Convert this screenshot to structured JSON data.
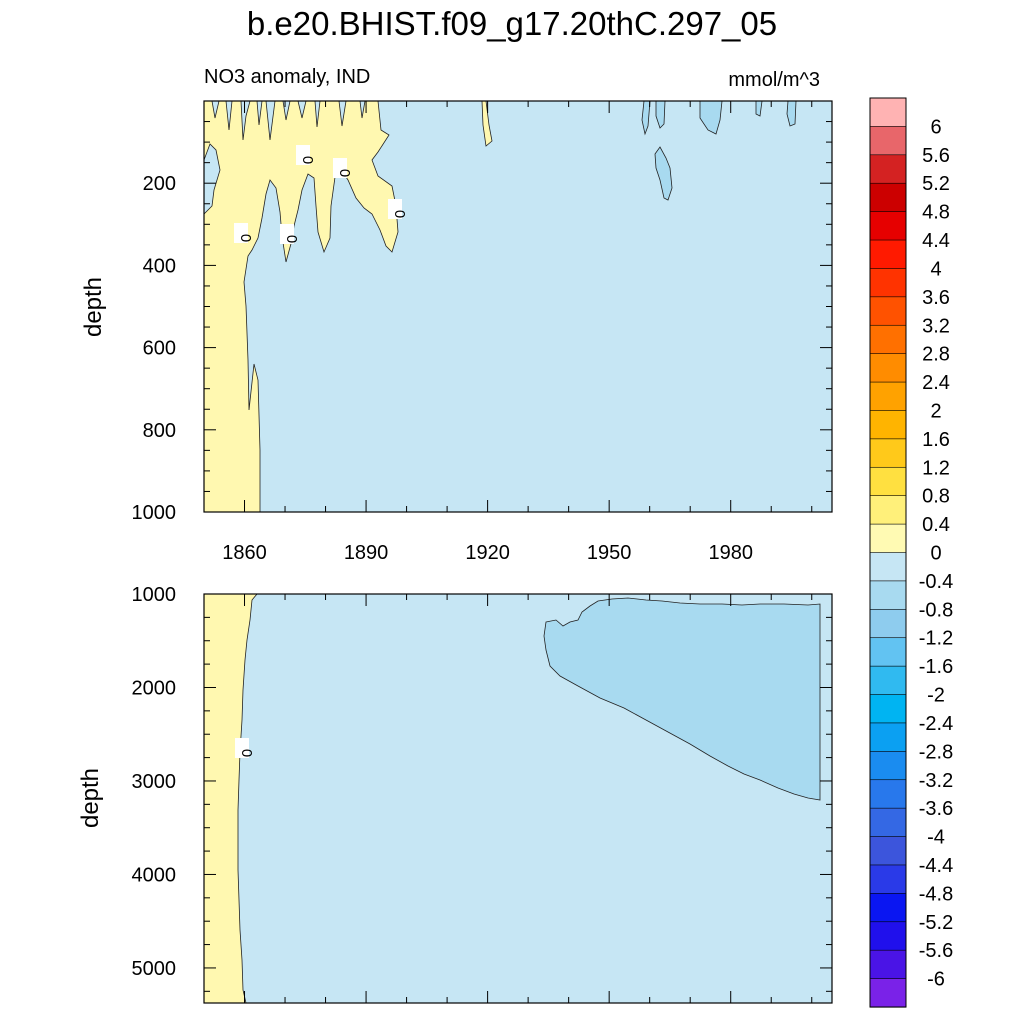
{
  "title": "b.e20.BHIST.f09_g17.20thC.297_05",
  "subtitle_left": "NO3 anomaly, IND",
  "units": "mmol/m^3",
  "ylabel": "depth",
  "contour_label": "0",
  "chart_data": [
    {
      "type": "heatmap",
      "panel": "upper",
      "variable": "NO3 anomaly",
      "region": "IND",
      "units": "mmol/m^3",
      "xlabel": "",
      "ylabel": "depth",
      "xlim": [
        1850,
        2005
      ],
      "ylim": [
        1000,
        0
      ],
      "xticks": [
        1860,
        1890,
        1920,
        1950,
        1980
      ],
      "yticks": [
        200,
        400,
        600,
        800,
        1000
      ],
      "contour_labels": [
        "0",
        "0",
        "0",
        "0",
        "0"
      ],
      "regions": [
        {
          "level": "0 to 0.4",
          "description": "positive anomaly near surface 1850-1900 and full-depth strip 1850-1865"
        },
        {
          "level": "-0.4 to 0",
          "description": "background"
        },
        {
          "level": "-0.8 to -0.4",
          "description": "small patches near surface after 1960"
        }
      ]
    },
    {
      "type": "heatmap",
      "panel": "lower",
      "variable": "NO3 anomaly",
      "region": "IND",
      "units": "mmol/m^3",
      "xlabel": "",
      "ylabel": "depth",
      "xlim": [
        1850,
        2005
      ],
      "ylim": [
        5375,
        1000
      ],
      "yticks": [
        1000,
        2000,
        3000,
        4000,
        5000
      ],
      "contour_labels": [
        "0"
      ],
      "regions": [
        {
          "level": "0 to 0.4",
          "description": "strip 1850-1860 full depth"
        },
        {
          "level": "-0.4 to 0",
          "description": "background"
        },
        {
          "level": "-0.8 to -0.4",
          "description": "wedge from ~1936 to 2005, 1000-3200 m"
        }
      ]
    }
  ],
  "colorbar": {
    "labels": [
      "6",
      "5.6",
      "5.2",
      "4.8",
      "4.4",
      "4",
      "3.6",
      "3.2",
      "2.8",
      "2.4",
      "2",
      "1.6",
      "1.2",
      "0.8",
      "0.4",
      "0",
      "-0.4",
      "-0.8",
      "-1.2",
      "-1.6",
      "-2",
      "-2.4",
      "-2.8",
      "-3.2",
      "-3.6",
      "-4",
      "-4.4",
      "-4.8",
      "-5.2",
      "-5.6",
      "-6"
    ],
    "colors": [
      "#FFB3B3",
      "#E8666A",
      "#D42222",
      "#CC0000",
      "#E60000",
      "#FF1A00",
      "#FF3300",
      "#FF5200",
      "#FF7000",
      "#FF8C00",
      "#FFA200",
      "#FFB400",
      "#FFC91A",
      "#FFE040",
      "#FFF07A",
      "#FFFAB3",
      "#C6E6F4",
      "#A8DAF0",
      "#8ECCEE",
      "#62C3F2",
      "#30BAF0",
      "#00B4F2",
      "#0BA0F2",
      "#1A8CF0",
      "#2878EC",
      "#3468E4",
      "#3C55DC",
      "#2A3AE8",
      "#0A16F2",
      "#2010EC",
      "#4A14E6",
      "#7A22E8"
    ]
  },
  "colors": {
    "positive_0_04": "#FFF8B0",
    "negative_04_0": "#C6E6F4",
    "negative_08_04": "#A8DAF0"
  }
}
